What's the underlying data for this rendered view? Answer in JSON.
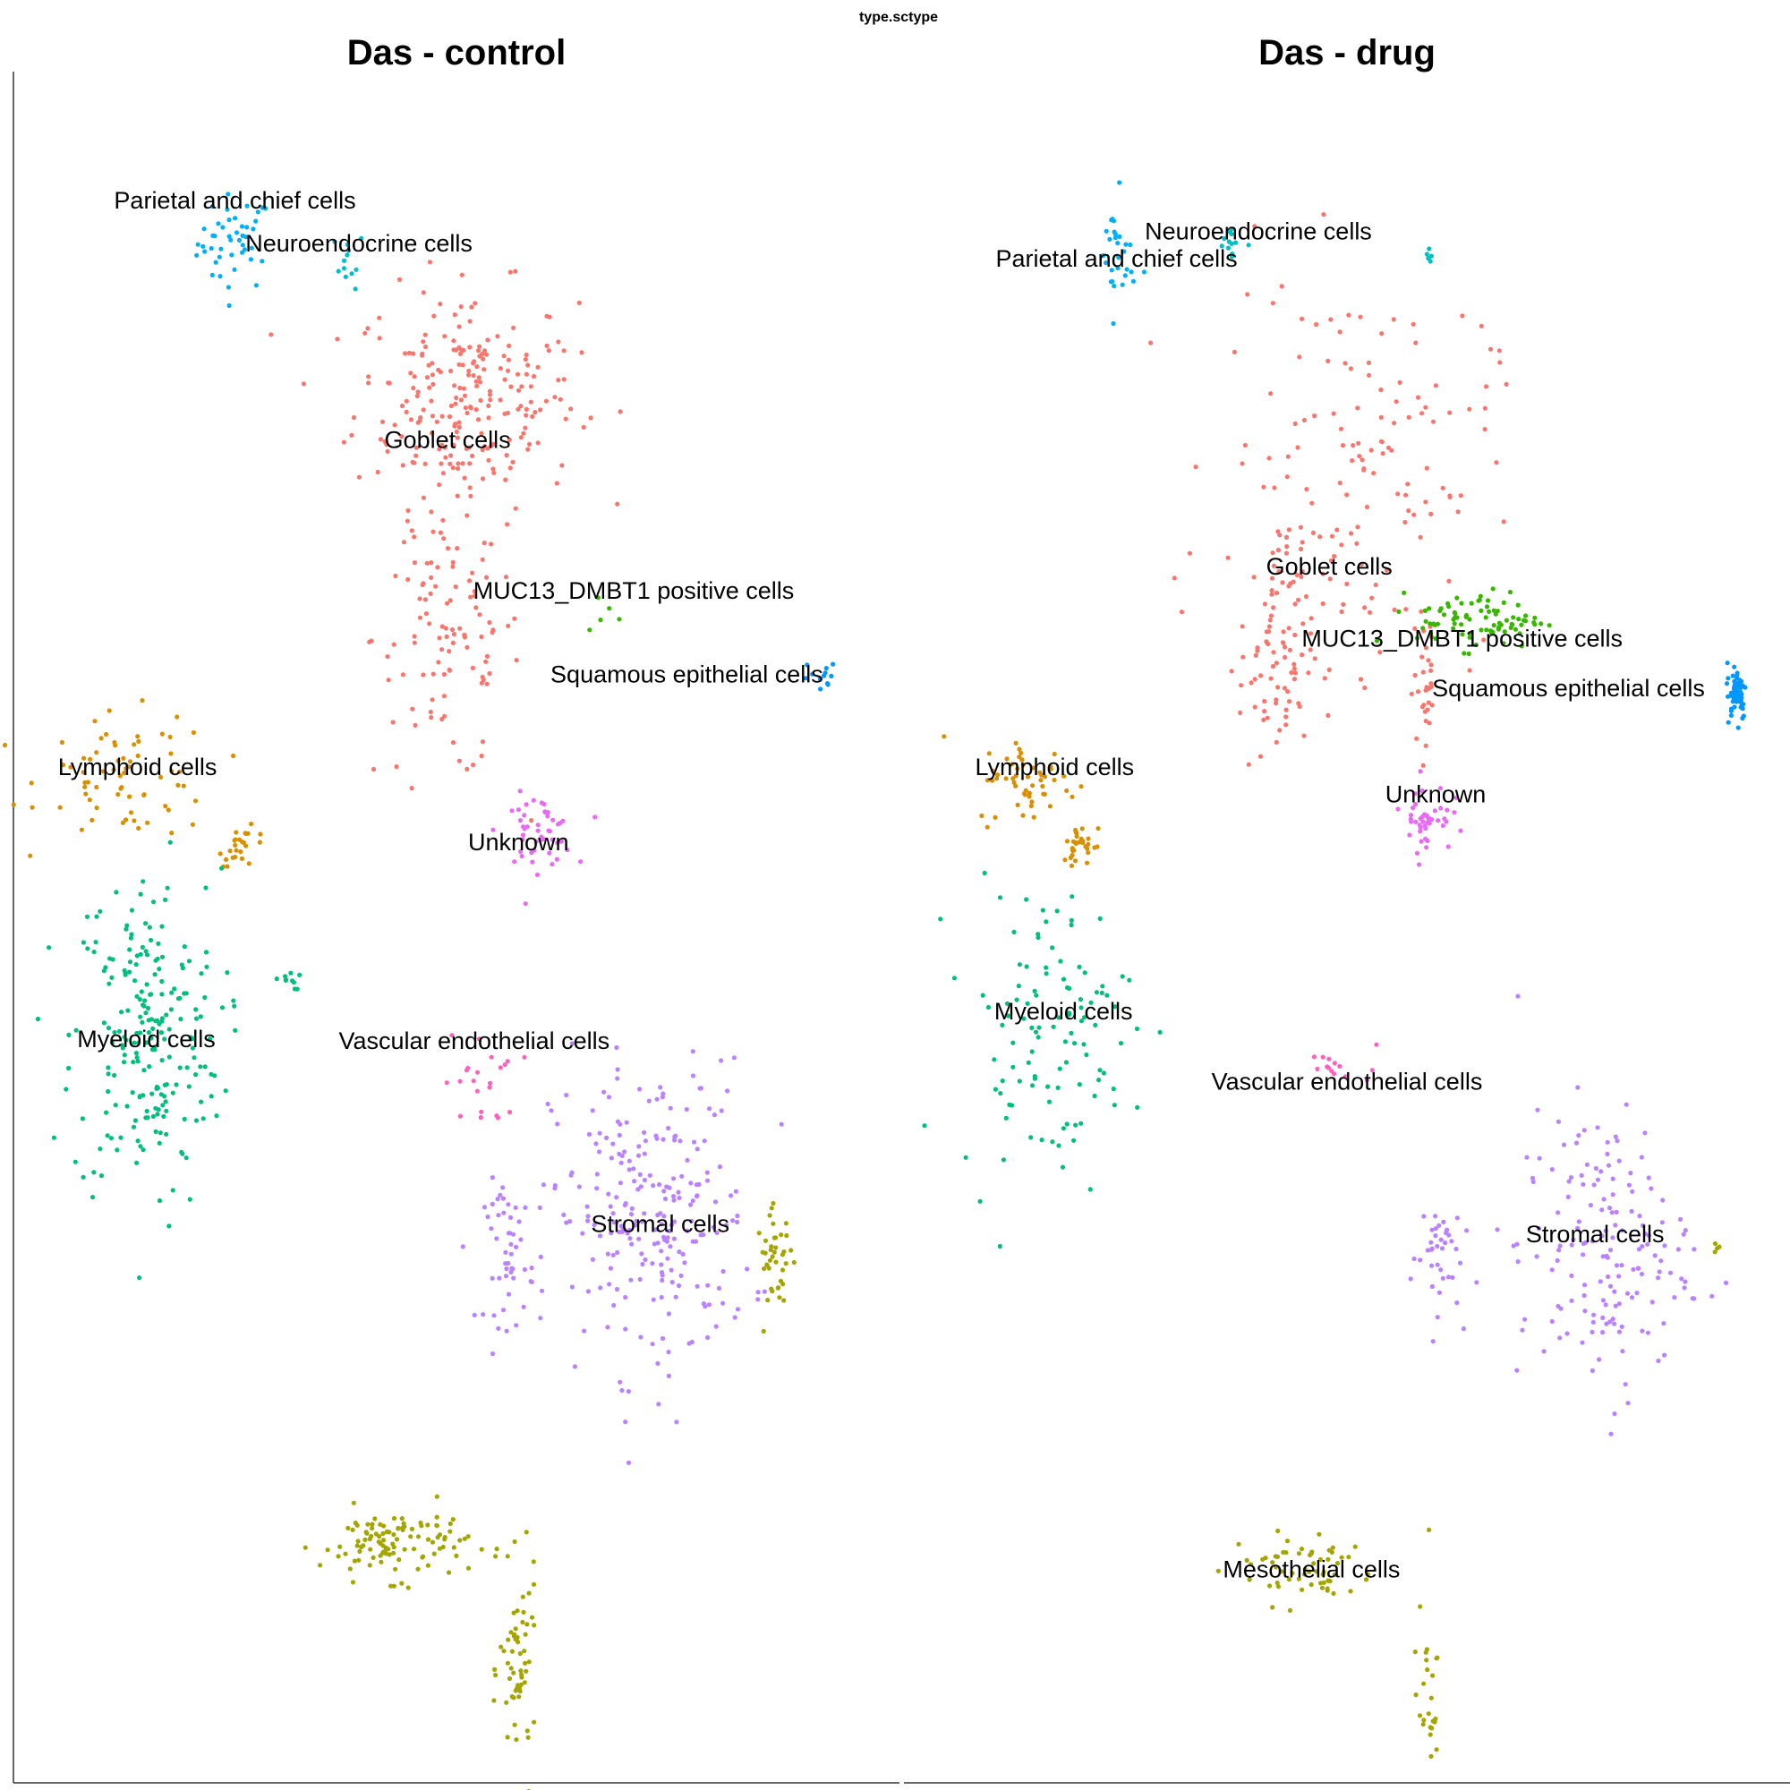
{
  "figure_title": "type.sctype",
  "colors": {
    "Goblet cells": "#F8766D",
    "Lymphoid cells": "#D89000",
    "Mesothelial cells": "#A3A500",
    "MUC13_DMBT1 positive cells": "#39B600",
    "Myeloid cells": "#00BF7D",
    "Neuroendocrine cells": "#00BFC4",
    "Parietal and chief cells": "#00B0F6",
    "Squamous epithelial cells": "#0098FF",
    "Stromal cells": "#B983FF",
    "Unknown": "#E76BF3",
    "Vascular endothelial cells": "#FF62BC"
  },
  "chart_data": [
    {
      "type": "scatter",
      "title": "Das - control",
      "xlabel": "",
      "ylabel": "",
      "grid": false,
      "legend": "none",
      "xlim": [
        0,
        100
      ],
      "ylim": [
        0,
        100
      ],
      "clusters": [
        {
          "name": "Parietal and chief cells",
          "label": "Parietal and chief cells",
          "center": [
            25,
            90
          ],
          "spread": [
            3,
            2
          ],
          "n": 45,
          "label_at": [
            25,
            92
          ]
        },
        {
          "name": "Neuroendocrine cells",
          "label": "Neuroendocrine cells",
          "center": [
            38,
            89
          ],
          "spread": [
            1.2,
            1.2
          ],
          "n": 12,
          "label_at": [
            39,
            89.5
          ]
        },
        {
          "name": "Goblet cells",
          "label": "Goblet cells",
          "center": [
            51,
            81
          ],
          "spread": [
            9,
            4.5
          ],
          "n": 230,
          "label_at": [
            49,
            78
          ]
        },
        {
          "name": "Goblet cells",
          "label": "",
          "center": [
            49,
            67
          ],
          "spread": [
            6,
            6
          ],
          "n": 110,
          "label_at": null
        },
        {
          "name": "MUC13_DMBT1 positive cells",
          "label": "MUC13_DMBT1 positive cells",
          "center": [
            67,
            68.2
          ],
          "spread": [
            3,
            0.8
          ],
          "n": 5,
          "label_at": [
            70,
            69.2
          ]
        },
        {
          "name": "Squamous epithelial cells",
          "label": "Squamous epithelial cells",
          "center": [
            91,
            64.4
          ],
          "spread": [
            1.5,
            0.9
          ],
          "n": 12,
          "label_at": [
            76,
            64.3
          ]
        },
        {
          "name": "Lymphoid cells",
          "label": "Lymphoid cells",
          "center": [
            13,
            58.8
          ],
          "spread": [
            7,
            2.6
          ],
          "n": 70,
          "label_at": [
            14,
            58.9
          ]
        },
        {
          "name": "Lymphoid cells",
          "label": "",
          "center": [
            26,
            54.7
          ],
          "spread": [
            2,
            0.8
          ],
          "n": 25,
          "label_at": null
        },
        {
          "name": "Unknown",
          "label": "Unknown",
          "center": [
            59,
            55.6
          ],
          "spread": [
            3,
            1.5
          ],
          "n": 50,
          "label_at": [
            57,
            54.5
          ]
        },
        {
          "name": "Myeloid cells",
          "label": "Myeloid cells",
          "center": [
            15,
            43.5
          ],
          "spread": [
            6,
            7
          ],
          "n": 220,
          "label_at": [
            15,
            43.0
          ]
        },
        {
          "name": "Myeloid cells",
          "label": "",
          "center": [
            31,
            46.9
          ],
          "spread": [
            1,
            0.4
          ],
          "n": 10,
          "label_at": null
        },
        {
          "name": "Vascular endothelial cells",
          "label": "Vascular endothelial cells",
          "center": [
            53,
            41
          ],
          "spread": [
            3,
            2
          ],
          "n": 22,
          "label_at": [
            52,
            42.9
          ]
        },
        {
          "name": "Stromal cells",
          "label": "Stromal cells",
          "center": [
            72,
            33
          ],
          "spread": [
            8,
            6.5
          ],
          "n": 240,
          "label_at": [
            73,
            32.2
          ]
        },
        {
          "name": "Stromal cells",
          "label": "",
          "center": [
            56,
            31
          ],
          "spread": [
            2,
            3
          ],
          "n": 50,
          "label_at": null
        },
        {
          "name": "Mesothelial cells",
          "label": "Mesothelial cells",
          "center": [
            86,
            30.5
          ],
          "spread": [
            1.5,
            2
          ],
          "n": 40,
          "label_at": null
        },
        {
          "name": "Mesothelial cells",
          "label": "",
          "center": [
            43,
            14
          ],
          "spread": [
            6,
            1.5
          ],
          "n": 110,
          "label_at": [
            50,
            14.5
          ]
        },
        {
          "name": "Mesothelial cells",
          "label": "",
          "center": [
            57,
            6.5
          ],
          "spread": [
            1.5,
            4
          ],
          "n": 60,
          "label_at": null
        }
      ]
    },
    {
      "type": "scatter",
      "title": "Das - drug",
      "xlabel": "",
      "ylabel": "",
      "grid": false,
      "legend": "none",
      "xlim": [
        0,
        100
      ],
      "ylim": [
        0,
        100
      ],
      "clusters": [
        {
          "name": "Parietal and chief cells",
          "label": "Parietal and chief cells",
          "center": [
            24,
            89
          ],
          "spread": [
            1.5,
            2.5
          ],
          "n": 30,
          "label_at": [
            24,
            88.6
          ]
        },
        {
          "name": "Neuroendocrine cells",
          "label": "Neuroendocrine cells",
          "center": [
            37,
            90
          ],
          "spread": [
            1.2,
            1
          ],
          "n": 12,
          "label_at": [
            40,
            90.2
          ]
        },
        {
          "name": "Neuroendocrine cells",
          "label": "",
          "center": [
            59.5,
            89.4
          ],
          "spread": [
            0.3,
            0.5
          ],
          "n": 5,
          "label_at": null
        },
        {
          "name": "Goblet cells",
          "label": "Goblet cells",
          "center": [
            51,
            77
          ],
          "spread": [
            11,
            8
          ],
          "n": 140,
          "label_at": [
            48,
            70.6
          ]
        },
        {
          "name": "Goblet cells",
          "label": "",
          "center": [
            42,
            66
          ],
          "spread": [
            3,
            5
          ],
          "n": 90,
          "label_at": null
        },
        {
          "name": "Goblet cells",
          "label": "",
          "center": [
            59,
            64
          ],
          "spread": [
            1,
            3
          ],
          "n": 30,
          "label_at": null
        },
        {
          "name": "MUC13_DMBT1 positive cells",
          "label": "MUC13_DMBT1 positive cells",
          "center": [
            65,
            68
          ],
          "spread": [
            5,
            1.2
          ],
          "n": 85,
          "label_at": [
            63,
            66.4
          ]
        },
        {
          "name": "Squamous epithelial cells",
          "label": "Squamous epithelial cells",
          "center": [
            94,
            63.8
          ],
          "spread": [
            0.8,
            1.2
          ],
          "n": 60,
          "label_at": [
            75,
            63.5
          ]
        },
        {
          "name": "Lymphoid cells",
          "label": "Lymphoid cells",
          "center": [
            14,
            58.5
          ],
          "spread": [
            4,
            1.8
          ],
          "n": 55,
          "label_at": [
            17,
            58.9
          ]
        },
        {
          "name": "Lymphoid cells",
          "label": "",
          "center": [
            20,
            54.8
          ],
          "spread": [
            1.5,
            0.8
          ],
          "n": 30,
          "label_at": null
        },
        {
          "name": "Unknown",
          "label": "Unknown",
          "center": [
            59,
            56.5
          ],
          "spread": [
            2,
            1.5
          ],
          "n": 45,
          "label_at": [
            60,
            57.3
          ]
        },
        {
          "name": "Myeloid cells",
          "label": "Myeloid cells",
          "center": [
            16,
            44
          ],
          "spread": [
            7,
            6
          ],
          "n": 110,
          "label_at": [
            18,
            44.6
          ]
        },
        {
          "name": "Vascular endothelial cells",
          "label": "Vascular endothelial cells",
          "center": [
            50,
            41.8
          ],
          "spread": [
            3,
            0.7
          ],
          "n": 14,
          "label_at": [
            50,
            40.5
          ]
        },
        {
          "name": "Stromal cells",
          "label": "Stromal cells",
          "center": [
            79,
            31
          ],
          "spread": [
            7,
            6
          ],
          "n": 160,
          "label_at": [
            78,
            31.6
          ]
        },
        {
          "name": "Stromal cells",
          "label": "",
          "center": [
            60,
            31
          ],
          "spread": [
            2,
            2.5
          ],
          "n": 40,
          "label_at": null
        },
        {
          "name": "Mesothelial cells",
          "label": "Mesothelial cells",
          "center": [
            45,
            12.5
          ],
          "spread": [
            6,
            1.5
          ],
          "n": 60,
          "label_at": [
            46,
            12.0
          ]
        },
        {
          "name": "Mesothelial cells",
          "label": "",
          "center": [
            59,
            6
          ],
          "spread": [
            1,
            3.5
          ],
          "n": 25,
          "label_at": null
        },
        {
          "name": "Mesothelial cells",
          "label": "",
          "center": [
            91.5,
            30
          ],
          "spread": [
            0.5,
            1.5
          ],
          "n": 4,
          "label_at": null
        }
      ]
    }
  ]
}
